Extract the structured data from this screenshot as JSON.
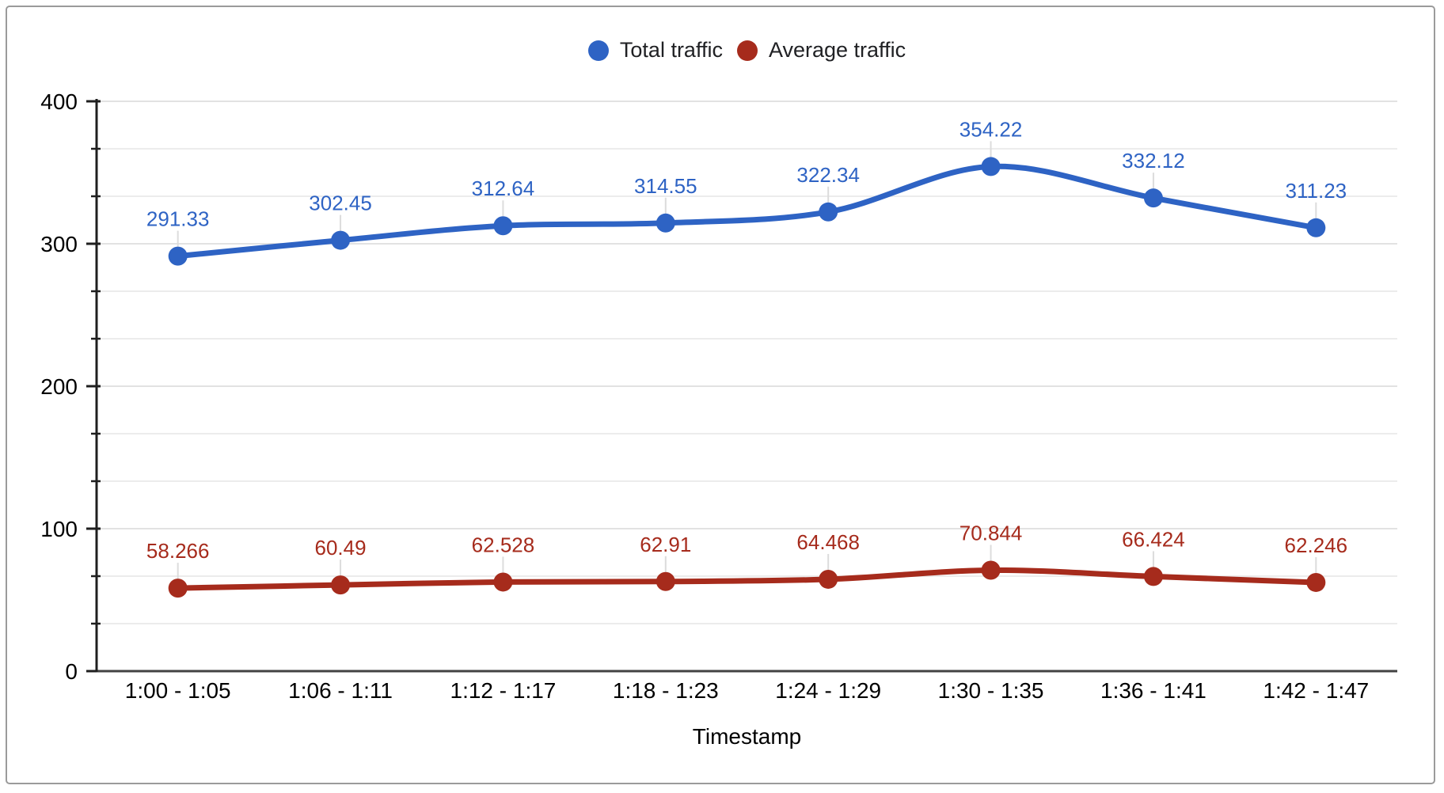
{
  "frame": {
    "border_color": "#9b9b9b",
    "background": "#ffffff"
  },
  "chart_data": {
    "type": "line",
    "title": "",
    "categories": [
      "1:00 - 1:05",
      "1:06 - 1:11",
      "1:12 - 1:17",
      "1:18 - 1:23",
      "1:24 - 1:29",
      "1:30 - 1:35",
      "1:36 - 1:41",
      "1:42 - 1:47"
    ],
    "series": [
      {
        "name": "Total traffic",
        "color": "#2e63c4",
        "values": [
          291.33,
          302.45,
          312.64,
          314.55,
          322.34,
          354.22,
          332.12,
          311.23
        ],
        "labels": [
          "291.33",
          "302.45",
          "312.64",
          "314.55",
          "322.34",
          "354.22",
          "332.12",
          "311.23"
        ]
      },
      {
        "name": "Average traffic",
        "color": "#a62b1c",
        "values": [
          58.266,
          60.49,
          62.528,
          62.91,
          64.468,
          70.844,
          66.424,
          62.246
        ],
        "labels": [
          "58.266",
          "60.49",
          "62.528",
          "62.91",
          "64.468",
          "70.844",
          "66.424",
          "62.246"
        ]
      }
    ],
    "xlabel": "Timestamp",
    "ylabel": "",
    "ylim": [
      0,
      400
    ],
    "y_major_ticks": [
      0,
      100,
      200,
      300,
      400
    ],
    "y_minor_divisions_per_major": 3,
    "grid": true,
    "smooth": true,
    "point_labels": true,
    "legend_position": "top",
    "colors": {
      "major_gridline": "#e2e2e2",
      "minor_gridline": "#ececec",
      "axis_line": "#1f1f1f",
      "baseline": "#424242",
      "label_stem": "#dcdcdc",
      "tick_text": "#000000"
    }
  }
}
